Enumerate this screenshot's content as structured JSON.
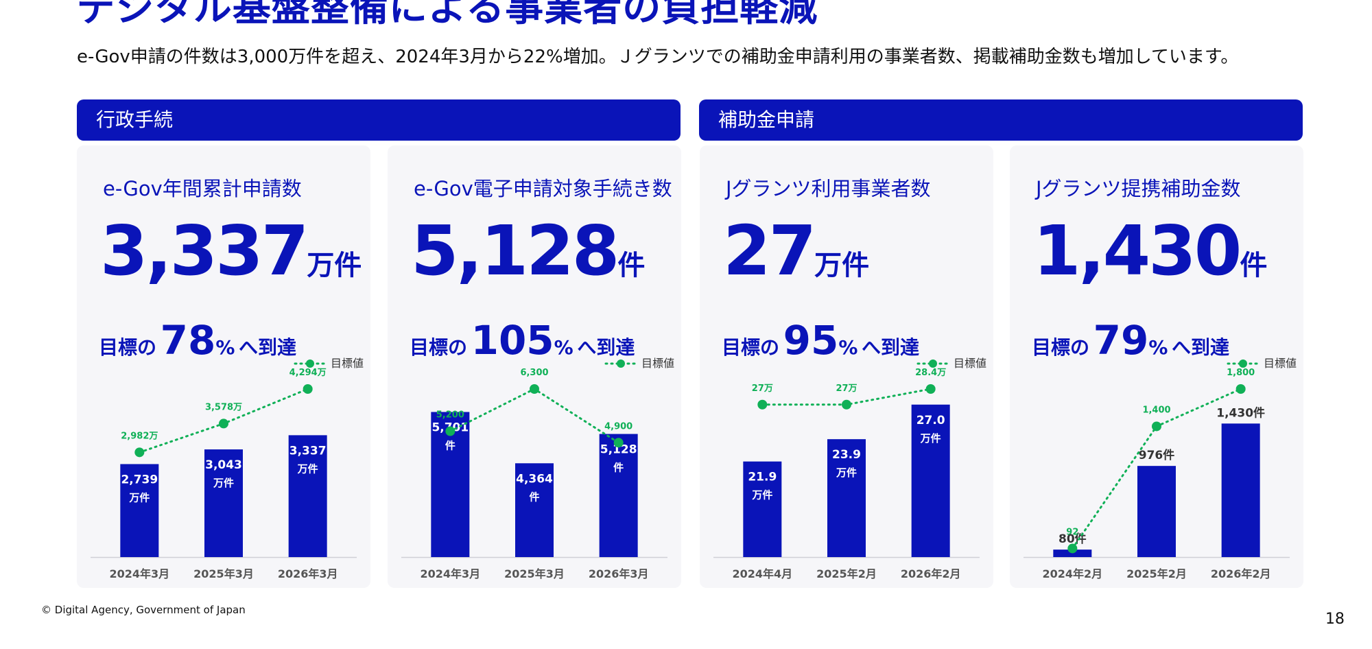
{
  "page": {
    "title": "デジタル基盤整備による事業者の負担軽減",
    "subtitle": "e-Gov申請の件数は3,000万件を超え、2024年3月から22%増加。Ｊグランツでの補助金申請利用の事業者数、掲載補助金数も増加しています。",
    "copyright": "© Digital Agency, Government of Japan",
    "page_number": "18"
  },
  "sections": [
    {
      "label": "行政手続"
    },
    {
      "label": "補助金申請"
    }
  ],
  "colors": {
    "brand": "#0a14b8",
    "target_line": "#10b057",
    "card_bg": "#f6f6f9"
  },
  "legend_label": "目標値",
  "cards": [
    {
      "label": "e-Gov年間累計申請数",
      "value": "3,337",
      "unit": "万件",
      "target_prefix": "目標の",
      "target_pct": "78",
      "target_pct_unit": "%",
      "target_suffix": "へ到達"
    },
    {
      "label": "e-Gov電子申請対象手続き数",
      "value": "5,128",
      "unit": "件",
      "target_prefix": "目標の",
      "target_pct": "105",
      "target_pct_unit": "%",
      "target_suffix": "へ到達"
    },
    {
      "label": "Jグランツ利用事業者数",
      "value": "27",
      "unit": "万件",
      "target_prefix": "目標の",
      "target_pct": "95",
      "target_pct_unit": "%",
      "target_suffix": "へ到達"
    },
    {
      "label": "Jグランツ提携補助金数",
      "value": "1,430",
      "unit": "件",
      "target_prefix": "目標の",
      "target_pct": "79",
      "target_pct_unit": "%",
      "target_suffix": "へ到達"
    }
  ],
  "chart_data": [
    {
      "type": "bar",
      "categories": [
        "2024年3月",
        "2025年3月",
        "2026年3月"
      ],
      "series": [
        {
          "values": [
            2739,
            3043,
            3337
          ],
          "labels": [
            "2,739",
            "3,043",
            "3,337"
          ],
          "unit_label": "万件",
          "label_position": "inside"
        },
        {
          "name": "目標値",
          "type": "line",
          "values": [
            2982,
            3578,
            4294
          ],
          "labels": [
            "2,982万",
            "3,578万",
            "4,294万"
          ]
        }
      ],
      "legend": "top-right"
    },
    {
      "type": "bar",
      "categories": [
        "2024年3月",
        "2025年3月",
        "2026年3月"
      ],
      "series": [
        {
          "values": [
            5701,
            4364,
            5128
          ],
          "labels": [
            "5,701",
            "4,364",
            "5,128"
          ],
          "unit_label": "件",
          "label_position": "inside"
        },
        {
          "name": "目標値",
          "type": "line",
          "values": [
            5200,
            6300,
            4900
          ],
          "labels": [
            "5,200",
            "6,300",
            "4,900"
          ]
        }
      ],
      "legend": "top-right"
    },
    {
      "type": "bar",
      "categories": [
        "2024年4月",
        "2025年2月",
        "2026年2月"
      ],
      "series": [
        {
          "values": [
            21.9,
            23.9,
            27.0
          ],
          "labels": [
            "21.9",
            "23.9",
            "27.0"
          ],
          "unit_label": "万件",
          "label_position": "inside"
        },
        {
          "name": "目標値",
          "type": "line",
          "values": [
            27,
            27,
            28.4
          ],
          "labels": [
            "27万",
            "27万",
            "28.4万"
          ]
        }
      ],
      "legend": "top-right"
    },
    {
      "type": "bar",
      "categories": [
        "2024年2月",
        "2025年2月",
        "2026年2月"
      ],
      "series": [
        {
          "values": [
            80,
            976,
            1430
          ],
          "labels": [
            "80件",
            "976件",
            "1,430件"
          ],
          "label_position": "above"
        },
        {
          "name": "目標値",
          "type": "line",
          "values": [
            92,
            1400,
            1800
          ],
          "labels": [
            "92",
            "1,400",
            "1,800"
          ]
        }
      ],
      "legend": "top-right"
    }
  ]
}
